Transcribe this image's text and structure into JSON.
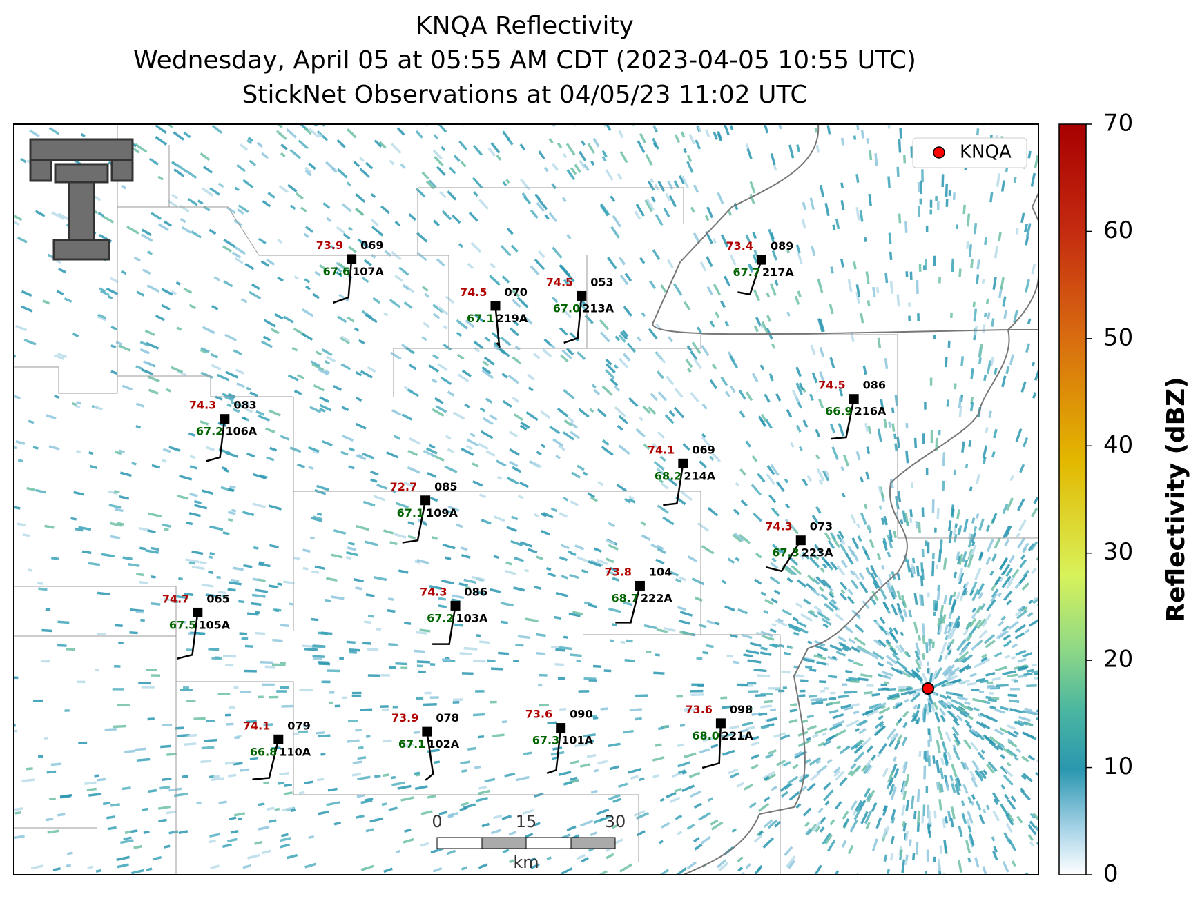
{
  "header": {
    "title": "KNQA Reflectivity",
    "subtitle": "Wednesday, April 05 at 05:55 AM CDT (2023-04-05 10:55 UTC)",
    "observations": "StickNet Observations at 04/05/23 11:02 UTC"
  },
  "legend": {
    "label": "KNQA",
    "color": "#ff0000"
  },
  "stations": [
    {
      "id": "107A",
      "temp": "73.9",
      "dewpoint": "67.6",
      "code": "069"
    },
    {
      "id": "219A",
      "temp": "74.5",
      "dewpoint": "67.1",
      "code": "070"
    },
    {
      "id": "213A",
      "temp": "74.5",
      "dewpoint": "67.0",
      "code": "053"
    },
    {
      "id": "217A",
      "temp": "73.4",
      "dewpoint": "67.7",
      "code": "089"
    },
    {
      "id": "106A",
      "temp": "74.3",
      "dewpoint": "67.2",
      "code": "083"
    },
    {
      "id": "216A",
      "temp": "74.5",
      "dewpoint": "66.9",
      "code": "086"
    },
    {
      "id": "214A",
      "temp": "74.1",
      "dewpoint": "68.2",
      "code": "069"
    },
    {
      "id": "109A",
      "temp": "72.7",
      "dewpoint": "67.1",
      "code": "085"
    },
    {
      "id": "223A",
      "temp": "74.3",
      "dewpoint": "67.3",
      "code": "073"
    },
    {
      "id": "105A",
      "temp": "74.7",
      "dewpoint": "67.5",
      "code": "065"
    },
    {
      "id": "103A",
      "temp": "74.3",
      "dewpoint": "67.2",
      "code": "086"
    },
    {
      "id": "222A",
      "temp": "73.8",
      "dewpoint": "68.7",
      "code": "104"
    },
    {
      "id": "110A",
      "temp": "74.1",
      "dewpoint": "66.8",
      "code": "079"
    },
    {
      "id": "102A",
      "temp": "73.9",
      "dewpoint": "67.1",
      "code": "078"
    },
    {
      "id": "101A",
      "temp": "73.6",
      "dewpoint": "67.3",
      "code": "090"
    },
    {
      "id": "221A",
      "temp": "73.6",
      "dewpoint": "68.0",
      "code": "098"
    }
  ],
  "scale_bar": {
    "ticks": [
      "0",
      "15",
      "30"
    ],
    "unit": "km"
  },
  "colorbar": {
    "label": "Reflectivity (dBZ)",
    "lim": [
      0,
      70
    ],
    "ticks": [
      0,
      10,
      20,
      30,
      40,
      50,
      60,
      70
    ]
  }
}
